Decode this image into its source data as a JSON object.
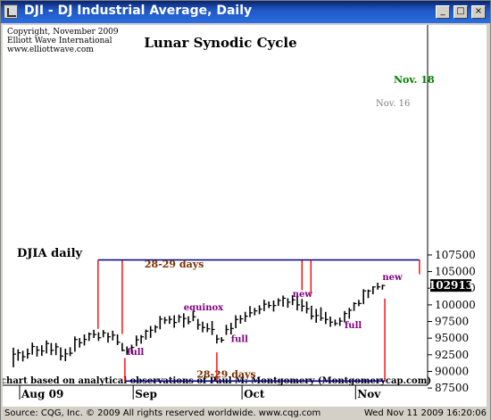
{
  "window": {
    "title": "DJI - DJ Industrial Average, Daily",
    "minimize_glyph": "_",
    "maximize_glyph": "□",
    "close_glyph": "×"
  },
  "status": {
    "left": "Source: CQG, Inc. © 2009 All rights reserved worldwide. www.cqg.com",
    "right": "Wed Nov 11 2009 16:20:06"
  },
  "chart_data": {
    "type": "ohlc",
    "title": "Lunar Synodic Cycle",
    "series_label": "DJIA daily",
    "copyright_lines": [
      "Copyright, November 2009",
      "Elliott Wave International",
      "www.elliottwave.com"
    ],
    "footnote": "chart based on analytical observations of Paul M. Montgomery (Montgomerycap.com)",
    "x_labels": [
      "Aug 09",
      "Sep",
      "Oct",
      "Nov"
    ],
    "y_ticks": [
      87500,
      90000,
      92500,
      95000,
      97500,
      100000,
      102500,
      105000,
      107500
    ],
    "y_tick_labels": [
      "87500",
      "90000",
      "92500",
      "95000",
      "97500",
      "100000",
      "102500",
      "105000",
      "107500"
    ],
    "ylim": [
      86500,
      110000
    ],
    "last_value": 10291.3,
    "last_value_label": "102913",
    "grid": false,
    "colors": {
      "cycle_lines": "#ff0000",
      "cycle_brackets": "#000080",
      "moon_labels": "#800080",
      "projection": "#008000",
      "bars": "#000000",
      "interval_text": "#7b3000"
    },
    "bars": [
      {
        "h": 9356,
        "l": 9062,
        "c": 9260
      },
      {
        "h": 9332,
        "l": 9160,
        "c": 9280
      },
      {
        "h": 9310,
        "l": 9150,
        "c": 9220
      },
      {
        "h": 9344,
        "l": 9191,
        "c": 9266
      },
      {
        "h": 9433,
        "l": 9251,
        "c": 9375
      },
      {
        "h": 9382,
        "l": 9223,
        "c": 9320
      },
      {
        "h": 9393,
        "l": 9233,
        "c": 9306
      },
      {
        "h": 9466,
        "l": 9270,
        "c": 9420
      },
      {
        "h": 9427,
        "l": 9244,
        "c": 9318
      },
      {
        "h": 9427,
        "l": 9245,
        "c": 9370
      },
      {
        "h": 9362,
        "l": 9165,
        "c": 9230
      },
      {
        "h": 9341,
        "l": 9154,
        "c": 9265
      },
      {
        "h": 9363,
        "l": 9231,
        "c": 9274
      },
      {
        "h": 9526,
        "l": 9296,
        "c": 9480
      },
      {
        "h": 9502,
        "l": 9358,
        "c": 9430
      },
      {
        "h": 9556,
        "l": 9389,
        "c": 9480
      },
      {
        "h": 9585,
        "l": 9457,
        "c": 9562
      },
      {
        "h": 9626,
        "l": 9503,
        "c": 9555
      },
      {
        "h": 9588,
        "l": 9458,
        "c": 9506
      },
      {
        "h": 9622,
        "l": 9512,
        "c": 9580
      },
      {
        "h": 9584,
        "l": 9432,
        "c": 9520
      },
      {
        "h": 9612,
        "l": 9466,
        "c": 9545
      },
      {
        "h": 9556,
        "l": 9396,
        "c": 9438
      },
      {
        "h": 9429,
        "l": 9303,
        "c": 9315
      },
      {
        "h": 9375,
        "l": 9252,
        "c": 9295
      },
      {
        "h": 9402,
        "l": 9265,
        "c": 9360
      },
      {
        "h": 9540,
        "l": 9378,
        "c": 9475
      },
      {
        "h": 9548,
        "l": 9418,
        "c": 9520
      },
      {
        "h": 9629,
        "l": 9476,
        "c": 9605
      },
      {
        "h": 9683,
        "l": 9503,
        "c": 9620
      },
      {
        "h": 9695,
        "l": 9580,
        "c": 9665
      },
      {
        "h": 9834,
        "l": 9633,
        "c": 9786
      },
      {
        "h": 9819,
        "l": 9714,
        "c": 9772
      },
      {
        "h": 9834,
        "l": 9715,
        "c": 9782
      },
      {
        "h": 9843,
        "l": 9656,
        "c": 9735
      },
      {
        "h": 9853,
        "l": 9734,
        "c": 9818
      },
      {
        "h": 9873,
        "l": 9658,
        "c": 9795
      },
      {
        "h": 9829,
        "l": 9707,
        "c": 9745
      },
      {
        "h": 9910,
        "l": 9756,
        "c": 9820
      },
      {
        "h": 9790,
        "l": 9627,
        "c": 9700
      },
      {
        "h": 9748,
        "l": 9588,
        "c": 9660
      },
      {
        "h": 9724,
        "l": 9591,
        "c": 9640
      },
      {
        "h": 9757,
        "l": 9547,
        "c": 9630
      },
      {
        "h": 9551,
        "l": 9420,
        "c": 9487
      },
      {
        "h": 9515,
        "l": 9433,
        "c": 9470
      },
      {
        "h": 9701,
        "l": 9548,
        "c": 9630
      },
      {
        "h": 9730,
        "l": 9555,
        "c": 9645
      },
      {
        "h": 9844,
        "l": 9650,
        "c": 9780
      },
      {
        "h": 9846,
        "l": 9718,
        "c": 9790
      },
      {
        "h": 9896,
        "l": 9744,
        "c": 9830
      },
      {
        "h": 9982,
        "l": 9814,
        "c": 9880
      },
      {
        "h": 9954,
        "l": 9842,
        "c": 9910
      },
      {
        "h": 9994,
        "l": 9859,
        "c": 9935
      },
      {
        "h": 10078,
        "l": 9907,
        "c": 10010
      },
      {
        "h": 10052,
        "l": 9950,
        "c": 9990
      },
      {
        "h": 10066,
        "l": 9900,
        "c": 9990
      },
      {
        "h": 10098,
        "l": 9984,
        "c": 10065
      },
      {
        "h": 10140,
        "l": 9971,
        "c": 10100
      },
      {
        "h": 10100,
        "l": 9956,
        "c": 10040
      },
      {
        "h": 10145,
        "l": 9996,
        "c": 10075
      },
      {
        "h": 10147,
        "l": 9916,
        "c": 10000
      },
      {
        "h": 10088,
        "l": 9900,
        "c": 9980
      },
      {
        "h": 10051,
        "l": 9871,
        "c": 9940
      },
      {
        "h": 9986,
        "l": 9780,
        "c": 9830
      },
      {
        "h": 9940,
        "l": 9730,
        "c": 9840
      },
      {
        "h": 9964,
        "l": 9760,
        "c": 9800
      },
      {
        "h": 9894,
        "l": 9712,
        "c": 9780
      },
      {
        "h": 9825,
        "l": 9670,
        "c": 9740
      },
      {
        "h": 9780,
        "l": 9686,
        "c": 9720
      },
      {
        "h": 9809,
        "l": 9684,
        "c": 9756
      },
      {
        "h": 9908,
        "l": 9736,
        "c": 9870
      },
      {
        "h": 9955,
        "l": 9791,
        "c": 9920
      },
      {
        "h": 10040,
        "l": 9909,
        "c": 10020
      },
      {
        "h": 10075,
        "l": 9980,
        "c": 10020
      },
      {
        "h": 10235,
        "l": 10010,
        "c": 10210
      },
      {
        "h": 10230,
        "l": 10102,
        "c": 10210
      },
      {
        "h": 10279,
        "l": 10159,
        "c": 10270
      },
      {
        "h": 10333,
        "l": 10228,
        "c": 10270
      },
      {
        "h": 10303,
        "l": 10228,
        "c": 10291
      }
    ],
    "cycle_lines": [
      {
        "bar": 23,
        "direction": "up",
        "to": 106750
      },
      {
        "bar": 43,
        "direction": "down",
        "to": 88550
      },
      {
        "bar": 61,
        "direction": "up",
        "to": 106750
      },
      {
        "bar": 78.5,
        "direction": "down",
        "to": 88550
      }
    ],
    "upper_cycle_top_bars": [
      16,
      37,
      61,
      78.5,
      83
    ],
    "lower_cycle_bars": [
      23,
      43,
      69
    ],
    "cycle_interval_labels": [
      {
        "text": "28-29 days",
        "anchor_bar": 23,
        "anchor_value": 105600
      },
      {
        "text": "28-29 days",
        "anchor_bar": 34,
        "anchor_value": 89050
      }
    ],
    "phase_labels": [
      {
        "text": "full",
        "bar": 24,
        "value": 92450
      },
      {
        "text": "equinox",
        "bar": 36,
        "value": 99150
      },
      {
        "text": "full",
        "bar": 46,
        "value": 94450
      },
      {
        "text": "new",
        "bar": 59,
        "value": 101200
      },
      {
        "text": "full",
        "bar": 70,
        "value": 96500
      },
      {
        "text": "new",
        "bar": 78,
        "value": 103750
      }
    ],
    "projection": {
      "label": "Nov. 18",
      "secondary_label": "Nov. 16"
    }
  }
}
